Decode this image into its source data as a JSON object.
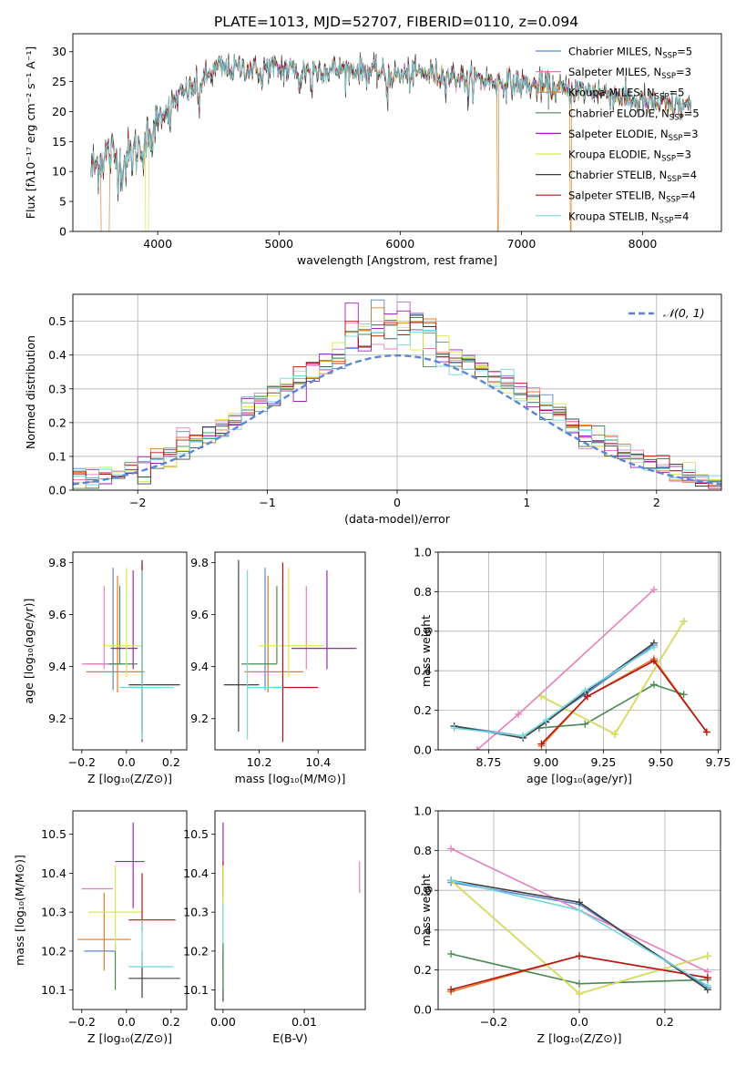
{
  "figure_title": "PLATE=1013, MJD=52707, FIBERID=0110, z=0.094",
  "colors": {
    "Chabrier MILES": "#5b86d6",
    "Salpeter MILES": "#e77fbd",
    "Kroupa MILES": "#e07b26",
    "Chabrier ELODIE": "#4a8a55",
    "Salpeter ELODIE": "#9b25b8",
    "Kroupa ELODIE": "#d8e84e",
    "Chabrier STELIB": "#404040",
    "Salpeter STELIB": "#b81414",
    "Kroupa STELIB": "#72d8de",
    "normal": "#5b86d6"
  },
  "chart_data": [
    {
      "id": "spectrum",
      "type": "line",
      "title": "PLATE=1013, MJD=52707, FIBERID=0110, z=0.094",
      "xlabel": "wavelength [Angstrom, rest frame]",
      "ylabel": "Flux [fλ10⁻¹⁷ erg cm⁻² s⁻¹ A⁻¹]",
      "xlim": [
        3300,
        8650
      ],
      "ylim": [
        0,
        33
      ],
      "xticks": [
        4000,
        5000,
        6000,
        7000,
        8000
      ],
      "yticks": [
        0,
        5,
        10,
        15,
        20,
        25,
        30
      ],
      "legend_position": "top-right",
      "grid": false,
      "legend": [
        {
          "base": "Chabrier MILES, N",
          "sub": "SSP",
          "tail": "=5"
        },
        {
          "base": "Salpeter MILES, N",
          "sub": "SSP",
          "tail": "=3"
        },
        {
          "base": "Kroupa MILES, N",
          "sub": "SSP",
          "tail": "=5"
        },
        {
          "base": "Chabrier ELODIE, N",
          "sub": "SSP",
          "tail": "=5"
        },
        {
          "base": "Salpeter ELODIE, N",
          "sub": "SSP",
          "tail": "=3"
        },
        {
          "base": "Kroupa ELODIE, N",
          "sub": "SSP",
          "tail": "=3"
        },
        {
          "base": "Chabrier STELIB, N",
          "sub": "SSP",
          "tail": "=4"
        },
        {
          "base": "Salpeter STELIB, N",
          "sub": "SSP",
          "tail": "=4"
        },
        {
          "base": "Kroupa STELIB, N",
          "sub": "SSP",
          "tail": "=4"
        }
      ],
      "observed_continuum": {
        "x": [
          3450,
          3520,
          3600,
          3700,
          3800,
          3900,
          4000,
          4100,
          4200,
          4300,
          4400,
          4500,
          4600,
          4700,
          4800,
          4900,
          5000,
          5200,
          5400,
          5600,
          5800,
          6000,
          6200,
          6400,
          6600,
          6800,
          7000,
          7200,
          7400,
          7600,
          7800,
          8000,
          8200,
          8400
        ],
        "y": [
          10,
          12,
          13,
          11,
          13,
          15,
          19,
          21,
          23,
          24,
          25.5,
          27.5,
          27,
          27.5,
          27,
          27.5,
          27,
          27,
          27,
          27,
          26.5,
          26,
          26.5,
          26,
          25.5,
          25,
          24.5,
          24,
          23.5,
          23.5,
          22.5,
          21.5,
          21,
          21
        ]
      },
      "model_drops": [
        {
          "series": "Kroupa MILES",
          "start": 3530,
          "end": 3600
        },
        {
          "series": "Kroupa ELODIE",
          "start": 3900,
          "end": 3925
        },
        {
          "series": "Kroupa MILES",
          "start": 6800,
          "end": 6810
        },
        {
          "series": "Kroupa MILES",
          "start": 7400,
          "end": 7415
        }
      ]
    },
    {
      "id": "residuals",
      "type": "histogram",
      "xlabel": "(data-model)/error",
      "ylabel": "Normed distribution",
      "xlim": [
        -2.5,
        2.5
      ],
      "ylim": [
        0,
        0.58
      ],
      "xticks": [
        -2,
        -1,
        0,
        1,
        2
      ],
      "yticks": [
        0.0,
        0.1,
        0.2,
        0.3,
        0.4,
        0.5
      ],
      "grid": true,
      "legend_position": "top-right",
      "normal_label": "𝒩(0, 1)",
      "bin_width": 0.1
    },
    {
      "id": "age_vs_Z",
      "type": "errorbar",
      "xlabel": "Z [log₁₀(Z/Z⊙)]",
      "ylabel": "age [log₁₀(age/yr)]",
      "xlim": [
        -0.24,
        0.27
      ],
      "ylim": [
        9.08,
        9.84
      ],
      "xticks": [
        -0.2,
        0.0,
        0.2
      ],
      "yticks": [
        9.2,
        9.4,
        9.6,
        9.8
      ],
      "points": [
        {
          "series": "Chabrier MILES",
          "x": -0.06,
          "xerr": [
            0.12,
            0.0
          ],
          "y": 9.41,
          "yerr": [
            0.1,
            0.37
          ]
        },
        {
          "series": "Salpeter MILES",
          "x": -0.1,
          "xerr": [
            0.1,
            0.08
          ],
          "y": 9.41,
          "yerr": [
            0.02,
            0.3
          ]
        },
        {
          "series": "Kroupa MILES",
          "x": -0.04,
          "xerr": [
            0.14,
            0.12
          ],
          "y": 9.38,
          "yerr": [
            0.08,
            0.37
          ]
        },
        {
          "series": "Chabrier ELODIE",
          "x": -0.03,
          "xerr": [
            0.05,
            0.08
          ],
          "y": 9.41,
          "yerr": [
            0.0,
            0.3
          ]
        },
        {
          "series": "Salpeter ELODIE",
          "x": 0.03,
          "xerr": [
            0.1,
            0.02
          ],
          "y": 9.47,
          "yerr": [
            0.08,
            0.3
          ]
        },
        {
          "series": "Kroupa ELODIE",
          "x": 0.0,
          "xerr": [
            0.1,
            0.07
          ],
          "y": 9.48,
          "yerr": [
            0.12,
            0.3
          ]
        },
        {
          "series": "Chabrier STELIB",
          "x": 0.07,
          "xerr": [
            0.06,
            0.17
          ],
          "y": 9.33,
          "yerr": [
            0.18,
            0.48
          ]
        },
        {
          "series": "Salpeter STELIB",
          "x": 0.07,
          "xerr": [
            0.06,
            0.0
          ],
          "y": 9.32,
          "yerr": [
            0.21,
            0.48
          ]
        },
        {
          "series": "Kroupa STELIB",
          "x": 0.07,
          "xerr": [
            0.1,
            0.14
          ],
          "y": 9.32,
          "yerr": [
            0.2,
            0.45
          ]
        }
      ]
    },
    {
      "id": "age_vs_mass",
      "type": "errorbar",
      "xlabel": "mass [log₁₀(M/M⊙)]",
      "xlim": [
        10.05,
        10.56
      ],
      "ylim": [
        9.08,
        9.84
      ],
      "xticks": [
        10.2,
        10.4
      ],
      "yticks": [
        9.2,
        9.4,
        9.6,
        9.8
      ],
      "points": [
        {
          "series": "Chabrier MILES",
          "x": 10.22,
          "xerr": [
            0.0,
            0.0
          ],
          "y": 9.41,
          "yerr": [
            0.1,
            0.37
          ]
        },
        {
          "series": "Salpeter MILES",
          "x": 10.36,
          "xerr": [
            0.0,
            0.0
          ],
          "y": 9.41,
          "yerr": [
            0.02,
            0.3
          ]
        },
        {
          "series": "Kroupa MILES",
          "x": 10.23,
          "xerr": [
            0.08,
            0.12
          ],
          "y": 9.38,
          "yerr": [
            0.08,
            0.37
          ]
        },
        {
          "series": "Chabrier ELODIE",
          "x": 10.26,
          "xerr": [
            0.12,
            0.0
          ],
          "y": 9.41,
          "yerr": [
            0.0,
            0.3
          ]
        },
        {
          "series": "Salpeter ELODIE",
          "x": 10.43,
          "xerr": [
            0.12,
            0.1
          ],
          "y": 9.47,
          "yerr": [
            0.08,
            0.3
          ]
        },
        {
          "series": "Kroupa ELODIE",
          "x": 10.3,
          "xerr": [
            0.1,
            0.12
          ],
          "y": 9.48,
          "yerr": [
            0.12,
            0.3
          ]
        },
        {
          "series": "Chabrier STELIB",
          "x": 10.13,
          "xerr": [
            0.05,
            0.07
          ],
          "y": 9.33,
          "yerr": [
            0.18,
            0.48
          ]
        },
        {
          "series": "Salpeter STELIB",
          "x": 10.28,
          "xerr": [
            0.03,
            0.12
          ],
          "y": 9.32,
          "yerr": [
            0.21,
            0.48
          ]
        },
        {
          "series": "Kroupa STELIB",
          "x": 10.16,
          "xerr": [
            0.0,
            0.12
          ],
          "y": 9.32,
          "yerr": [
            0.2,
            0.45
          ]
        }
      ]
    },
    {
      "id": "weight_vs_age",
      "type": "line",
      "xlabel": "age [log₁₀(age/yr)]",
      "ylabel": "mass weight",
      "xlim": [
        8.53,
        9.76
      ],
      "ylim": [
        0,
        1
      ],
      "xticks": [
        8.75,
        9.0,
        9.25,
        9.5,
        9.75
      ],
      "yticks": [
        0.0,
        0.2,
        0.4,
        0.6,
        0.8,
        1.0
      ],
      "grid": true,
      "series": [
        {
          "name": "Chabrier MILES",
          "x": [
            8.6,
            8.9,
            9.17,
            9.47
          ],
          "y": [
            0.12,
            0.07,
            0.28,
            0.53
          ]
        },
        {
          "name": "Salpeter MILES",
          "x": [
            8.7,
            8.88,
            9.47
          ],
          "y": [
            0.0,
            0.18,
            0.81
          ]
        },
        {
          "name": "Kroupa MILES",
          "x": [
            8.98,
            9.18,
            9.47,
            9.7
          ],
          "y": [
            0.02,
            0.27,
            0.46,
            0.09
          ]
        },
        {
          "name": "Chabrier ELODIE",
          "x": [
            8.97,
            9.17,
            9.47,
            9.6
          ],
          "y": [
            0.11,
            0.13,
            0.33,
            0.28
          ]
        },
        {
          "name": "Salpeter ELODIE",
          "x": [
            8.98,
            9.3,
            9.6
          ],
          "y": [
            0.27,
            0.08,
            0.65
          ]
        },
        {
          "name": "Kroupa ELODIE",
          "x": [
            8.98,
            9.3,
            9.6
          ],
          "y": [
            0.27,
            0.08,
            0.65
          ]
        },
        {
          "name": "Chabrier STELIB",
          "x": [
            8.6,
            8.9,
            9.0,
            9.17,
            9.47
          ],
          "y": [
            0.12,
            0.06,
            0.14,
            0.29,
            0.54
          ]
        },
        {
          "name": "Salpeter STELIB",
          "x": [
            8.98,
            9.18,
            9.47,
            9.7
          ],
          "y": [
            0.03,
            0.27,
            0.45,
            0.09
          ]
        },
        {
          "name": "Kroupa STELIB",
          "x": [
            8.6,
            8.9,
            9.0,
            9.17,
            9.47
          ],
          "y": [
            0.11,
            0.07,
            0.15,
            0.3,
            0.52
          ]
        }
      ]
    },
    {
      "id": "mass_vs_Z",
      "type": "errorbar",
      "xlabel": "Z [log₁₀(Z/Z⊙)]",
      "ylabel": "mass [log₁₀(M/M⊙)]",
      "xlim": [
        -0.24,
        0.27
      ],
      "ylim": [
        10.05,
        10.56
      ],
      "xticks": [
        -0.2,
        0.0,
        0.2
      ],
      "yticks": [
        10.1,
        10.2,
        10.3,
        10.4,
        10.5
      ],
      "points": [
        {
          "series": "Chabrier MILES",
          "x": -0.1,
          "xerr": [
            0.09,
            0.05
          ],
          "y": 10.2,
          "yerr": [
            0.0,
            0.0
          ]
        },
        {
          "series": "Salpeter MILES",
          "x": -0.16,
          "xerr": [
            0.04,
            0.1
          ],
          "y": 10.36,
          "yerr": [
            0.0,
            0.0
          ]
        },
        {
          "series": "Kroupa MILES",
          "x": -0.1,
          "xerr": [
            0.12,
            0.12
          ],
          "y": 10.23,
          "yerr": [
            0.08,
            0.12
          ]
        },
        {
          "series": "Chabrier ELODIE",
          "x": -0.05,
          "xerr": [
            0.0,
            0.0
          ],
          "y": 10.22,
          "yerr": [
            0.12,
            0.0
          ]
        },
        {
          "series": "Salpeter ELODIE",
          "x": 0.03,
          "xerr": [
            0.08,
            0.05
          ],
          "y": 10.43,
          "yerr": [
            0.12,
            0.1
          ]
        },
        {
          "series": "Kroupa ELODIE",
          "x": -0.05,
          "xerr": [
            0.12,
            0.12
          ],
          "y": 10.3,
          "yerr": [
            0.1,
            0.12
          ]
        },
        {
          "series": "Chabrier STELIB",
          "x": 0.07,
          "xerr": [
            0.06,
            0.17
          ],
          "y": 10.13,
          "yerr": [
            0.05,
            0.07
          ]
        },
        {
          "series": "Salpeter STELIB",
          "x": 0.07,
          "xerr": [
            0.06,
            0.15
          ],
          "y": 10.28,
          "yerr": [
            0.03,
            0.12
          ]
        },
        {
          "series": "Kroupa STELIB",
          "x": 0.07,
          "xerr": [
            0.06,
            0.14
          ],
          "y": 10.16,
          "yerr": [
            0.0,
            0.12
          ]
        }
      ]
    },
    {
      "id": "mass_vs_EBV",
      "type": "errorbar",
      "xlabel": "E(B-V)",
      "xlim": [
        -0.001,
        0.0175
      ],
      "ylim": [
        10.05,
        10.56
      ],
      "xticks": [
        0.0,
        0.01
      ],
      "yticks": [
        10.1,
        10.2,
        10.3,
        10.4,
        10.5
      ],
      "points": [
        {
          "series": "Salpeter MILES",
          "x": 0.0168,
          "xerr": [
            0.0,
            0.0
          ],
          "y": 10.39,
          "yerr": [
            0.04,
            0.04
          ]
        },
        {
          "series": "Salpeter ELODIE",
          "x": 0.0,
          "xerr": [
            0.0,
            0.0
          ],
          "y": 10.43,
          "yerr": [
            0.12,
            0.1
          ]
        },
        {
          "series": "Salpeter STELIB",
          "x": 0.0,
          "xerr": [
            0.0,
            0.0
          ],
          "y": 10.38,
          "yerr": [
            0.04,
            0.05
          ]
        },
        {
          "series": "Kroupa ELODIE",
          "x": 0.0,
          "xerr": [
            0.0,
            0.0
          ],
          "y": 10.3,
          "yerr": [
            0.1,
            0.12
          ]
        },
        {
          "series": "Kroupa STELIB",
          "x": 0.0,
          "xerr": [
            0.0,
            0.0
          ],
          "y": 10.16,
          "yerr": [
            0.0,
            0.16
          ]
        },
        {
          "series": "Chabrier STELIB",
          "x": 0.0,
          "xerr": [
            0.0,
            0.0
          ],
          "y": 10.13,
          "yerr": [
            0.06,
            0.07
          ]
        },
        {
          "series": "Chabrier ELODIE",
          "x": 0.0,
          "xerr": [
            0.0,
            0.0
          ],
          "y": 10.22,
          "yerr": [
            0.12,
            0.0
          ]
        }
      ]
    },
    {
      "id": "weight_vs_Z",
      "type": "line",
      "xlabel": "Z [log₁₀(Z/Z⊙)]",
      "ylabel": "mass weight",
      "xlim": [
        -0.33,
        0.33
      ],
      "ylim": [
        0,
        1
      ],
      "xticks": [
        -0.2,
        0.0,
        0.2
      ],
      "yticks": [
        0.0,
        0.2,
        0.4,
        0.6,
        0.8,
        1.0
      ],
      "grid": true,
      "series": [
        {
          "name": "Chabrier MILES",
          "x": [
            -0.3,
            0.0,
            0.3
          ],
          "y": [
            0.64,
            0.53,
            0.11
          ]
        },
        {
          "name": "Salpeter MILES",
          "x": [
            -0.3,
            0.3
          ],
          "y": [
            0.81,
            0.19
          ]
        },
        {
          "name": "Kroupa MILES",
          "x": [
            -0.3,
            0.0,
            0.3
          ],
          "y": [
            0.09,
            0.27,
            0.16
          ]
        },
        {
          "name": "Chabrier ELODIE",
          "x": [
            -0.3,
            0.0,
            0.3
          ],
          "y": [
            0.28,
            0.13,
            0.15
          ]
        },
        {
          "name": "Salpeter ELODIE",
          "x": [
            -0.3,
            0.0,
            0.3
          ],
          "y": [
            0.65,
            0.08,
            0.27
          ]
        },
        {
          "name": "Kroupa ELODIE",
          "x": [
            -0.3,
            0.0,
            0.3
          ],
          "y": [
            0.65,
            0.08,
            0.27
          ]
        },
        {
          "name": "Chabrier STELIB",
          "x": [
            -0.3,
            0.0,
            0.3
          ],
          "y": [
            0.65,
            0.54,
            0.1
          ]
        },
        {
          "name": "Salpeter STELIB",
          "x": [
            -0.3,
            0.0,
            0.3
          ],
          "y": [
            0.1,
            0.27,
            0.16
          ]
        },
        {
          "name": "Kroupa STELIB",
          "x": [
            -0.3,
            0.0,
            0.3
          ],
          "y": [
            0.65,
            0.5,
            0.12
          ]
        }
      ]
    }
  ]
}
